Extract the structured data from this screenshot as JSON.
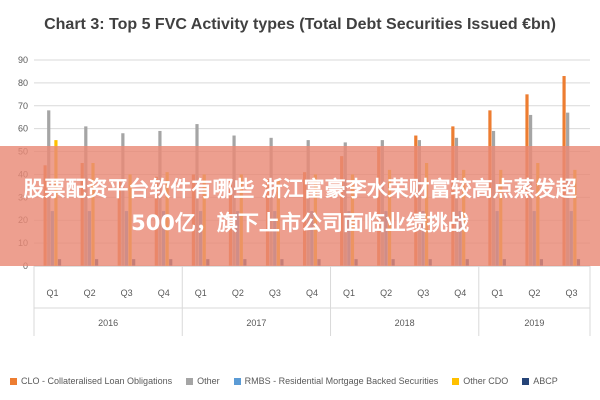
{
  "chart_data": {
    "type": "bar",
    "title": "Chart 3: Top 5 FVC Activity types (Total Debt Securities Issued €bn)",
    "xlabel": "",
    "ylabel": "",
    "ylim": [
      0,
      90
    ],
    "yticks": [
      0,
      10,
      20,
      30,
      40,
      50,
      60,
      70,
      80,
      90
    ],
    "grid": true,
    "legend_position": "bottom",
    "categories": [
      "Q1",
      "Q2",
      "Q3",
      "Q4",
      "Q1",
      "Q2",
      "Q3",
      "Q4",
      "Q1",
      "Q2",
      "Q3",
      "Q4",
      "Q1",
      "Q2",
      "Q3"
    ],
    "groups": [
      {
        "label": "2016",
        "span": 4
      },
      {
        "label": "2017",
        "span": 4
      },
      {
        "label": "2018",
        "span": 4
      },
      {
        "label": "2019",
        "span": 3
      }
    ],
    "series": [
      {
        "name": "CLO - Collateralised Loan Obligations",
        "color": "#ed7d31",
        "values": [
          44,
          45,
          38,
          39,
          40,
          38,
          38,
          41,
          48,
          52,
          57,
          61,
          68,
          75,
          83
        ]
      },
      {
        "name": "Other",
        "color": "#a5a5a5",
        "values": [
          68,
          61,
          58,
          59,
          62,
          57,
          56,
          55,
          54,
          55,
          55,
          56,
          59,
          66,
          67
        ]
      },
      {
        "name": "RMBS - Residential Mortgage Backed Securities",
        "color": "#5b9bd5",
        "values": [
          24,
          24,
          24,
          24,
          24,
          24,
          24,
          24,
          24,
          24,
          24,
          24,
          24,
          24,
          24
        ]
      },
      {
        "name": "Other CDO",
        "color": "#ffc000",
        "values": [
          55,
          45,
          40,
          41,
          40,
          40,
          38,
          40,
          40,
          42,
          45,
          42,
          42,
          45,
          42
        ]
      },
      {
        "name": "ABCP",
        "color": "#264478",
        "values": [
          3,
          3,
          3,
          3,
          3,
          3,
          3,
          3,
          3,
          3,
          3,
          3,
          3,
          3,
          3
        ]
      }
    ]
  },
  "banner": {
    "text": "股票配资平台软件有哪些 浙江富豪李水荣财富较高点蒸发超500亿，旗下上市公司面临业绩挑战"
  }
}
